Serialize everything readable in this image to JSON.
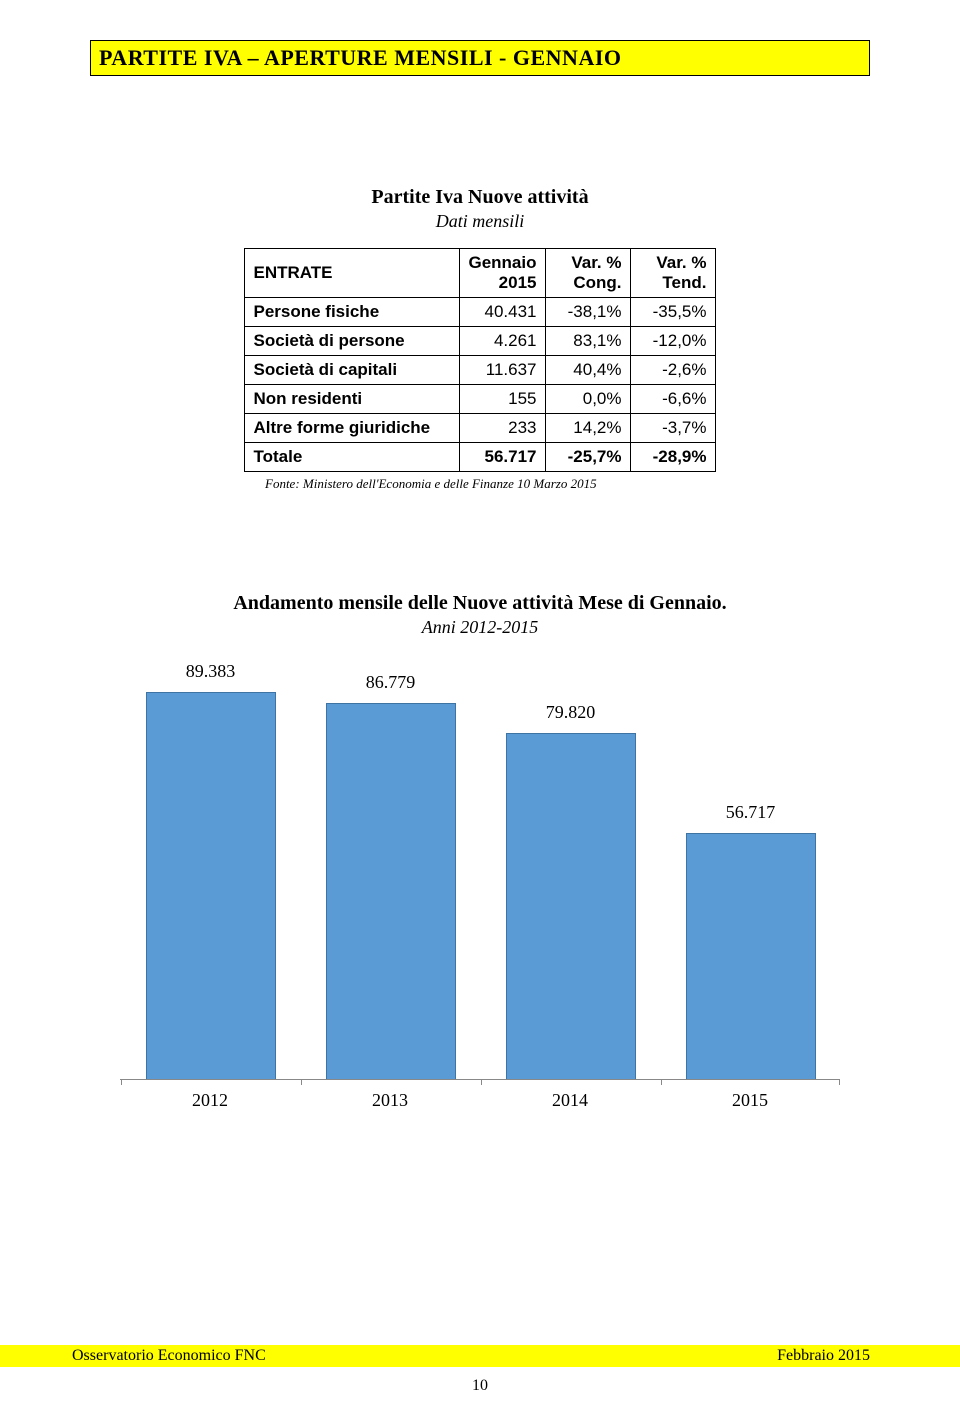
{
  "banner": {
    "text": "PARTITE IVA – APERTURE MENSILI - GENNAIO"
  },
  "table": {
    "title": "Partite Iva Nuove attività",
    "subtitle": "Dati mensili",
    "headers": {
      "col0": "ENTRATE",
      "col1": "Gennaio 2015",
      "col2": "Var. % Cong.",
      "col3": "Var. % Tend."
    },
    "rows": [
      {
        "label": "Persone fisiche",
        "c1": "40.431",
        "c2": "-38,1%",
        "c3": "-35,5%"
      },
      {
        "label": "Società di persone",
        "c1": "4.261",
        "c2": "83,1%",
        "c3": "-12,0%"
      },
      {
        "label": "Società di capitali",
        "c1": "11.637",
        "c2": "40,4%",
        "c3": "-2,6%"
      },
      {
        "label": "Non residenti",
        "c1": "155",
        "c2": "0,0%",
        "c3": "-6,6%"
      },
      {
        "label": "Altre forme giuridiche",
        "c1": "233",
        "c2": "14,2%",
        "c3": "-3,7%"
      },
      {
        "label": "Totale",
        "c1": "56.717",
        "c2": "-25,7%",
        "c3": "-28,9%"
      }
    ],
    "source": "Fonte: Ministero dell'Economia e delle Finanze 10 Marzo 2015"
  },
  "chart": {
    "title": "Andamento mensile delle Nuove attività Mese di Gennaio.",
    "subtitle": "Anni 2012-2015",
    "type": "bar",
    "categories": [
      "2012",
      "2013",
      "2014",
      "2015"
    ],
    "values": [
      89383,
      86779,
      79820,
      56717
    ],
    "value_labels": [
      "89.383",
      "86.779",
      "79.820",
      "56.717"
    ],
    "bar_color": "#5b9bd5",
    "bar_border": "#3e74a4",
    "ymax": 90000,
    "label_fontsize": 18,
    "background_color": "#ffffff"
  },
  "footer": {
    "left": "Osservatorio Economico FNC",
    "right": "Febbraio 2015",
    "page": "10"
  }
}
